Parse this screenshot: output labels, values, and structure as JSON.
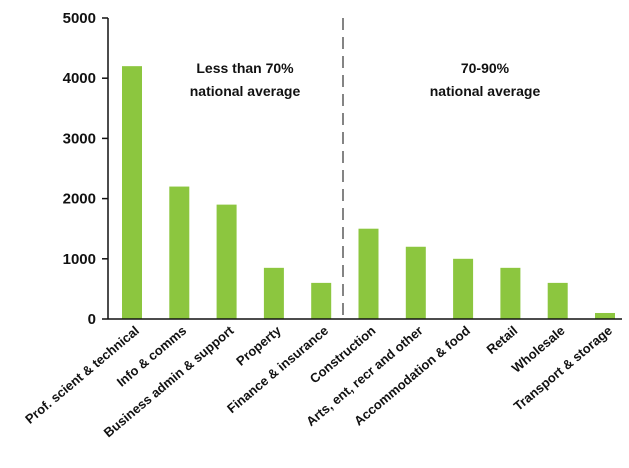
{
  "chart_data": {
    "type": "bar",
    "title": "",
    "xlabel": "",
    "ylabel": "",
    "ylim": [
      0,
      5000
    ],
    "y_ticks": [
      "0",
      "1000",
      "2000",
      "3000",
      "4000",
      "5000"
    ],
    "grid": false,
    "categories": [
      "Prof. scient & technical",
      "Info & comms",
      "Business admin & support",
      "Property",
      "Finance & insurance",
      "Construction",
      "Arts, ent, recr and other",
      "Accommodation & food",
      "Retail",
      "Wholesale",
      "Transport & storage"
    ],
    "values": [
      4200,
      2200,
      1900,
      850,
      600,
      1500,
      1200,
      1000,
      850,
      600,
      100
    ],
    "bar_color": "#8cc63f",
    "annotations": {
      "left_line1": "Less than 70%",
      "left_line2": "national average",
      "right_line1": "70-90%",
      "right_line2": "national average"
    },
    "divider_after_category": 4
  }
}
